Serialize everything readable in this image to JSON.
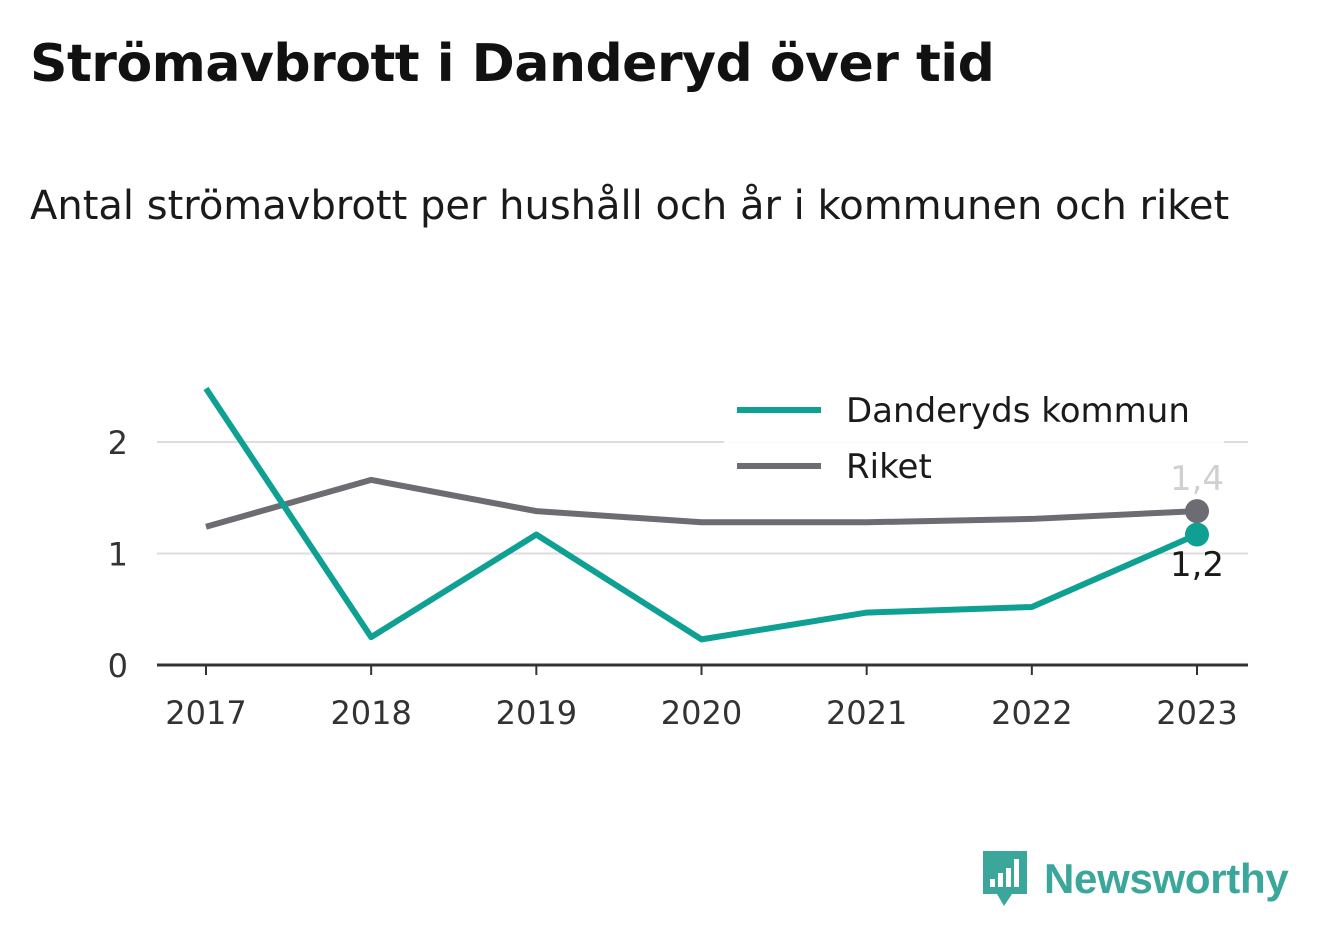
{
  "title": "Strömavbrott i Danderyd över tid",
  "subtitle": "Antal strömavbrott per hushåll och år i kommunen och riket",
  "brand": "Newsworthy",
  "colors": {
    "kommun": "#0fa094",
    "riket": "#6d6c72",
    "grid": "#dddddd",
    "axis": "#333333",
    "brand": "#3aa79a"
  },
  "chart_data": {
    "type": "line",
    "x": [
      "2017",
      "2018",
      "2019",
      "2020",
      "2021",
      "2022",
      "2023"
    ],
    "ylim": [
      0,
      2.5
    ],
    "yticks": [
      0,
      1,
      2
    ],
    "ytick_labels": [
      "0",
      "1",
      "2"
    ],
    "grid": true,
    "legend_position": "top-right",
    "series": [
      {
        "name": "Danderyds kommun",
        "color_key": "kommun",
        "values": [
          2.48,
          0.25,
          1.17,
          0.23,
          0.47,
          0.52,
          1.17
        ],
        "end_label": "1,2"
      },
      {
        "name": "Riket",
        "color_key": "riket",
        "values": [
          1.24,
          1.66,
          1.38,
          1.28,
          1.28,
          1.31,
          1.38
        ],
        "end_label": "1,4"
      }
    ]
  }
}
